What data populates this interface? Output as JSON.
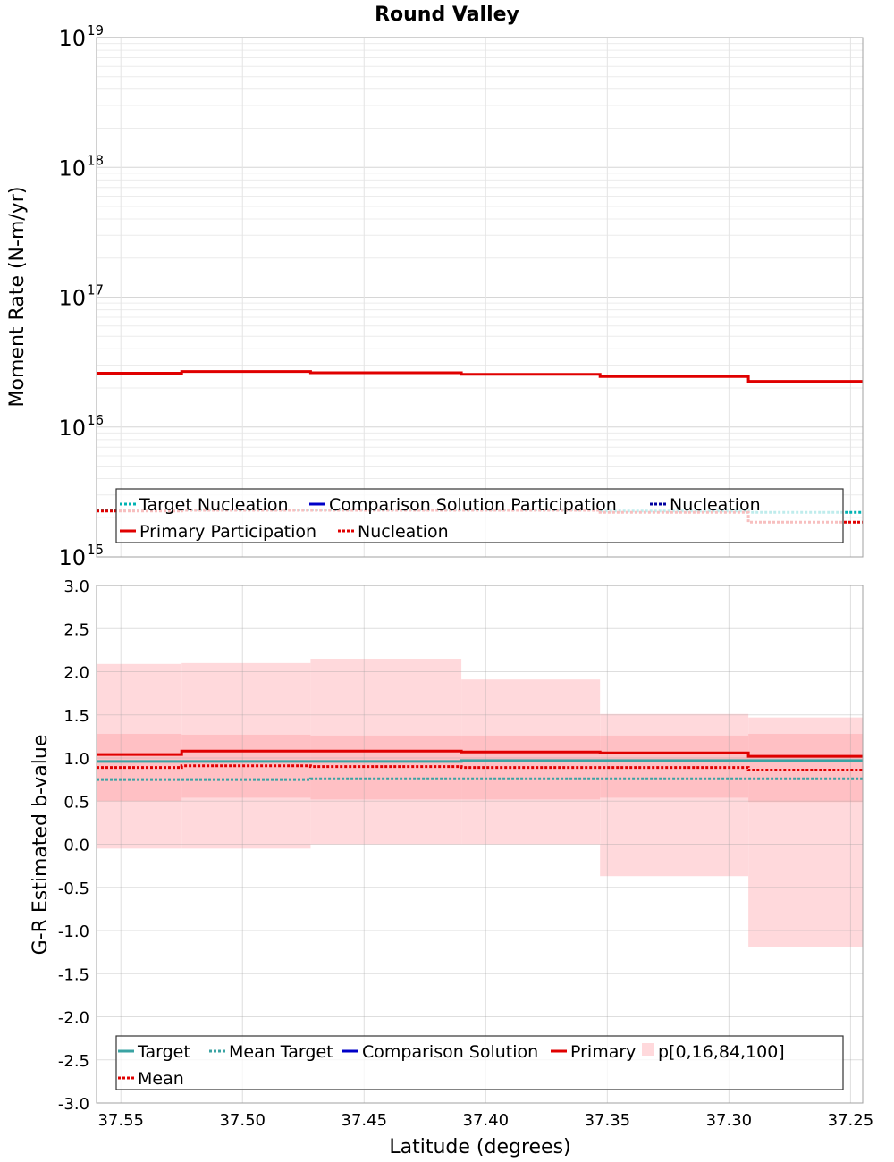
{
  "chart_data": [
    {
      "type": "line",
      "title": "Round Valley",
      "xlabel": "",
      "ylabel": "Moment Rate (N-m/yr)",
      "yscale": "log",
      "xlim": [
        37.56,
        37.245
      ],
      "ylim": [
        1000000000000000.0,
        1e+19
      ],
      "yticks": [
        {
          "base": "10",
          "exp": "15",
          "value": 1000000000000000.0
        },
        {
          "base": "10",
          "exp": "16",
          "value": 1e+16
        },
        {
          "base": "10",
          "exp": "17",
          "value": 1e+17
        },
        {
          "base": "10",
          "exp": "18",
          "value": 1e+18
        },
        {
          "base": "10",
          "exp": "19",
          "value": 1e+19
        }
      ],
      "grid": true,
      "bin_edges": [
        37.56,
        37.525,
        37.472,
        37.41,
        37.353,
        37.292,
        37.245
      ],
      "series": [
        {
          "name": "Target Nucleation",
          "color": "#00b3b3",
          "style": "dotted",
          "values": [
            2300000000000000.0,
            2300000000000000.0,
            2300000000000000.0,
            2300000000000000.0,
            2250000000000000.0,
            2200000000000000.0
          ]
        },
        {
          "name": "Comparison Solution Participation",
          "color": "#0000c8",
          "style": "solid",
          "values": []
        },
        {
          "name": "Nucleation",
          "color": "#0000a0",
          "style": "dotted",
          "values": []
        },
        {
          "name": "Primary Participation",
          "color": "#e00000",
          "style": "solid",
          "values": [
            2.6e+16,
            2.68e+16,
            2.62e+16,
            2.55e+16,
            2.45e+16,
            2.25e+16
          ]
        },
        {
          "name": "Nucleation",
          "color": "#e00000",
          "style": "dotted",
          "values": [
            2250000000000000.0,
            2280000000000000.0,
            2280000000000000.0,
            2280000000000000.0,
            2200000000000000.0,
            1850000000000000.0
          ]
        }
      ],
      "legend_position": "bottom"
    },
    {
      "type": "line",
      "title": "",
      "xlabel": "Latitude (degrees)",
      "ylabel": "G-R Estimated b-value",
      "xlim": [
        37.56,
        37.245
      ],
      "ylim": [
        -3.0,
        3.0
      ],
      "xticks": [
        "37.55",
        "37.50",
        "37.45",
        "37.40",
        "37.35",
        "37.30",
        "37.25"
      ],
      "xtick_values": [
        37.55,
        37.5,
        37.45,
        37.4,
        37.35,
        37.3,
        37.25
      ],
      "yticks": [
        "-3.0",
        "-2.5",
        "-2.0",
        "-1.5",
        "-1.0",
        "-0.5",
        "0.0",
        "0.5",
        "1.0",
        "1.5",
        "2.0",
        "2.5",
        "3.0"
      ],
      "ytick_values": [
        -3.0,
        -2.5,
        -2.0,
        -1.5,
        -1.0,
        -0.5,
        0.0,
        0.5,
        1.0,
        1.5,
        2.0,
        2.5,
        3.0
      ],
      "grid": true,
      "bin_edges": [
        37.56,
        37.525,
        37.472,
        37.41,
        37.353,
        37.292,
        37.245
      ],
      "bands": [
        {
          "name": "p[0,16,84,100]",
          "kind": "outer",
          "color": "#ffd9dc",
          "low": [
            -0.05,
            -0.05,
            0.0,
            0.0,
            -0.37,
            -1.19
          ],
          "high": [
            2.09,
            2.1,
            2.15,
            1.91,
            1.51,
            1.47
          ]
        },
        {
          "name": "p[0,16,84,100]",
          "kind": "inner",
          "color": "#ffc0c4",
          "low": [
            0.5,
            0.54,
            0.52,
            0.52,
            0.54,
            0.49
          ],
          "high": [
            1.28,
            1.27,
            1.26,
            1.26,
            1.26,
            1.28
          ]
        }
      ],
      "series": [
        {
          "name": "Target",
          "color": "#3aa3a3",
          "style": "solid",
          "values": [
            0.96,
            0.96,
            0.96,
            0.97,
            0.97,
            0.97
          ]
        },
        {
          "name": "Mean Target",
          "color": "#3aa3a3",
          "style": "dotted",
          "values": [
            0.75,
            0.75,
            0.76,
            0.76,
            0.76,
            0.76
          ]
        },
        {
          "name": "Comparison Solution",
          "color": "#0000c8",
          "style": "solid",
          "values": []
        },
        {
          "name": "Primary",
          "color": "#e00000",
          "style": "solid",
          "values": [
            1.04,
            1.08,
            1.08,
            1.07,
            1.06,
            1.02
          ]
        },
        {
          "name": "Mean",
          "color": "#e00000",
          "style": "dotted",
          "values": [
            0.89,
            0.91,
            0.9,
            0.89,
            0.89,
            0.86
          ]
        }
      ],
      "legend_position": "bottom"
    }
  ]
}
